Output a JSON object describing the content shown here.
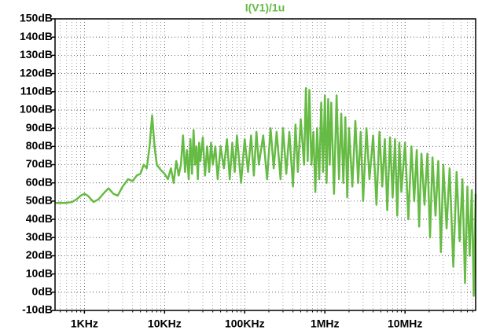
{
  "chart_data": {
    "type": "line",
    "title": "I(V1)/1u",
    "title_color": "#66bb44",
    "xscale": "log",
    "grid": true,
    "xlim": [
      430,
      76000000
    ],
    "ylim": [
      -10,
      150
    ],
    "xticks": [
      {
        "value": 1000,
        "label": "1KHz"
      },
      {
        "value": 10000,
        "label": "10KHz"
      },
      {
        "value": 100000,
        "label": "100KHz"
      },
      {
        "value": 1000000,
        "label": "1MHz"
      },
      {
        "value": 10000000,
        "label": "10MHz"
      }
    ],
    "yticks": [
      {
        "value": -10,
        "label": "-10dB"
      },
      {
        "value": 0,
        "label": "0dB"
      },
      {
        "value": 10,
        "label": "10dB"
      },
      {
        "value": 20,
        "label": "20dB"
      },
      {
        "value": 30,
        "label": "30dB"
      },
      {
        "value": 40,
        "label": "40dB"
      },
      {
        "value": 50,
        "label": "50dB"
      },
      {
        "value": 60,
        "label": "60dB"
      },
      {
        "value": 70,
        "label": "70dB"
      },
      {
        "value": 80,
        "label": "80dB"
      },
      {
        "value": 90,
        "label": "90dB"
      },
      {
        "value": 100,
        "label": "100dB"
      },
      {
        "value": 110,
        "label": "110dB"
      },
      {
        "value": 120,
        "label": "120dB"
      },
      {
        "value": 130,
        "label": "130dB"
      },
      {
        "value": 140,
        "label": "140dB"
      },
      {
        "value": 150,
        "label": "150dB"
      }
    ],
    "x": [
      430,
      500,
      600,
      700,
      800,
      900,
      1000,
      1100,
      1300,
      1500,
      1800,
      2000,
      2300,
      2600,
      3000,
      3500,
      4000,
      4500,
      5000,
      5500,
      6000,
      6500,
      7000,
      7500,
      8000,
      9000,
      10000,
      11000,
      12000,
      13000,
      14000,
      15000,
      16000,
      17000,
      18000,
      19000,
      20000,
      21000,
      22000,
      23000,
      24000,
      25000,
      26000,
      27000,
      28000,
      30000,
      32000,
      34000,
      36000,
      38000,
      40000,
      43000,
      46000,
      50000,
      55000,
      60000,
      65000,
      70000,
      75000,
      80000,
      90000,
      100000,
      110000,
      120000,
      130000,
      140000,
      150000,
      170000,
      190000,
      210000,
      230000,
      250000,
      280000,
      300000,
      330000,
      360000,
      400000,
      430000,
      460000,
      500000,
      550000,
      580000,
      610000,
      640000,
      680000,
      720000,
      760000,
      800000,
      850000,
      900000,
      950000,
      1000000,
      1050000,
      1100000,
      1150000,
      1200000,
      1300000,
      1400000,
      1500000,
      1600000,
      1700000,
      1800000,
      1900000,
      2000000,
      2200000,
      2400000,
      2600000,
      2800000,
      3000000,
      3300000,
      3600000,
      4000000,
      4400000,
      4800000,
      5200000,
      5600000,
      6000000,
      6500000,
      7000000,
      7500000,
      8000000,
      8500000,
      9000000,
      10000000,
      11000000,
      12000000,
      13000000,
      14000000,
      15000000,
      16000000,
      17500000,
      19000000,
      20500000,
      22000000,
      24000000,
      26000000,
      28000000,
      30000000,
      33000000,
      36000000,
      40000000,
      44000000,
      48000000,
      52000000,
      56000000,
      60000000,
      64000000,
      68000000,
      72000000,
      76000000
    ],
    "series": [
      {
        "name": "I(V1)/1u",
        "color": "#66bb44",
        "values": [
          49,
          49,
          49,
          49.5,
          51,
          53,
          54,
          53,
          49.5,
          51,
          55,
          57,
          54,
          53,
          58,
          62,
          61,
          64,
          65,
          70,
          68,
          80,
          97,
          80,
          70,
          67,
          65,
          62,
          68,
          60,
          72,
          64,
          70,
          86,
          66,
          78,
          62,
          84,
          65,
          89,
          70,
          80,
          62,
          82,
          72,
          85,
          64,
          80,
          66,
          82,
          70,
          80,
          62,
          80,
          68,
          84,
          62,
          82,
          66,
          86,
          60,
          84,
          66,
          86,
          64,
          88,
          70,
          86,
          62,
          90,
          68,
          88,
          62,
          90,
          65,
          88,
          58,
          92,
          66,
          95,
          70,
          112,
          72,
          111,
          70,
          88,
          55,
          90,
          62,
          104,
          66,
          108,
          60,
          106,
          70,
          104,
          54,
          108,
          62,
          98,
          60,
          96,
          52,
          90,
          58,
          94,
          60,
          88,
          50,
          90,
          62,
          86,
          48,
          88,
          58,
          84,
          45,
          85,
          52,
          84,
          42,
          82,
          55,
          82,
          40,
          80,
          50,
          78,
          36,
          76,
          48,
          76,
          30,
          74,
          42,
          72,
          22,
          70,
          35,
          68,
          14,
          66,
          28,
          62,
          5,
          58,
          20,
          56,
          -2,
          54
        ]
      }
    ]
  }
}
